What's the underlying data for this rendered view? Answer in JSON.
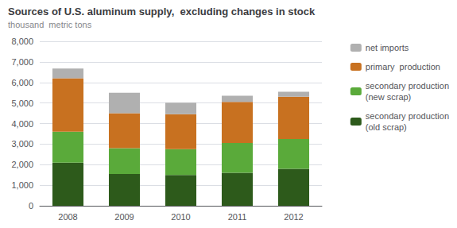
{
  "chart_data": {
    "type": "bar",
    "title": "Sources of U.S. aluminum supply,  excluding changes in stock",
    "subtitle": "thousand  metric tons",
    "categories": [
      "2008",
      "2009",
      "2010",
      "2011",
      "2012"
    ],
    "stacked": true,
    "series": [
      {
        "name": "secondary production\n(old scrap)",
        "color": "#2d5a1b",
        "values": [
          2100,
          1550,
          1500,
          1600,
          1800
        ]
      },
      {
        "name": "secondary production\n(new scrap)",
        "color": "#5aaa3a",
        "values": [
          1500,
          1250,
          1250,
          1450,
          1450
        ]
      },
      {
        "name": "primary  production",
        "color": "#c87120",
        "values": [
          2600,
          1700,
          1700,
          2000,
          2050
        ]
      },
      {
        "name": "net imports",
        "color": "#b0b0b0",
        "values": [
          480,
          1000,
          560,
          300,
          250
        ]
      }
    ],
    "ylim": [
      0,
      8000
    ],
    "yticks": [
      0,
      {
        "value": 1000,
        "label": "1,000"
      },
      {
        "value": 2000,
        "label": "2,000"
      },
      {
        "value": 3000,
        "label": "3,000"
      },
      {
        "value": 4000,
        "label": "4,000"
      },
      {
        "value": 5000,
        "label": "5,000"
      },
      {
        "value": 6000,
        "label": "6,000"
      },
      {
        "value": 7000,
        "label": "7,000"
      },
      {
        "value": 8000,
        "label": "8,000"
      }
    ],
    "grid": true,
    "legend": "right"
  }
}
